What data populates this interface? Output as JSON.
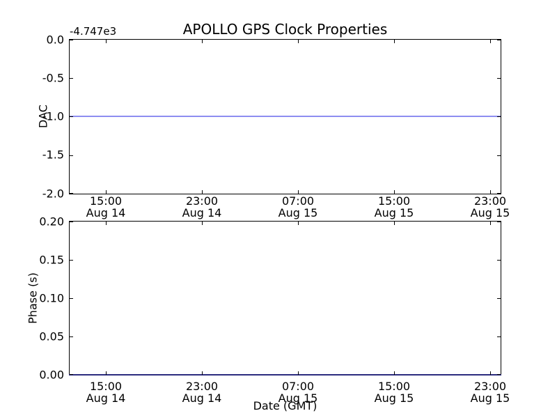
{
  "figure": {
    "title": "APOLLO GPS Clock Properties",
    "background_color": "#ffffff",
    "axes_color": "#000000",
    "line_color_rendered": "#8d8df0"
  },
  "chart_data": [
    {
      "type": "line",
      "title": "APOLLO GPS Clock Properties",
      "ylabel": "DAC",
      "y_offset_text": "-4.747e3",
      "ylim": [
        -2.0,
        0.0
      ],
      "yticks": [
        "0.0",
        "-0.5",
        "-1.0",
        "-1.5",
        "-2.0"
      ],
      "xticks": [
        {
          "time": "15:00",
          "date": "Aug 14"
        },
        {
          "time": "23:00",
          "date": "Aug 14"
        },
        {
          "time": "07:00",
          "date": "Aug 15"
        },
        {
          "time": "15:00",
          "date": "Aug 15"
        },
        {
          "time": "23:00",
          "date": "Aug 15"
        }
      ],
      "grid": false,
      "legend": null,
      "series": [
        {
          "name": "DAC",
          "shape": "constant horizontal line spanning entire x-axis",
          "y": -1.0,
          "y_actual_with_offset": -4748,
          "color_rendered": "#8d8df0"
        }
      ]
    },
    {
      "type": "line",
      "ylabel": "Phase (s)",
      "xlabel": "Date (GMT)",
      "ylim": [
        0.0,
        0.2
      ],
      "yticks": [
        "0.20",
        "0.15",
        "0.10",
        "0.05",
        "0.00"
      ],
      "xticks": [
        {
          "time": "15:00",
          "date": "Aug 14"
        },
        {
          "time": "23:00",
          "date": "Aug 14"
        },
        {
          "time": "07:00",
          "date": "Aug 15"
        },
        {
          "time": "15:00",
          "date": "Aug 15"
        },
        {
          "time": "23:00",
          "date": "Aug 15"
        }
      ],
      "grid": false,
      "legend": null,
      "series": [
        {
          "name": "Phase",
          "shape": "constant horizontal line spanning entire x-axis, lying on bottom axis spine",
          "y": 0.0,
          "color_rendered": "#2b2b7e"
        }
      ]
    }
  ]
}
